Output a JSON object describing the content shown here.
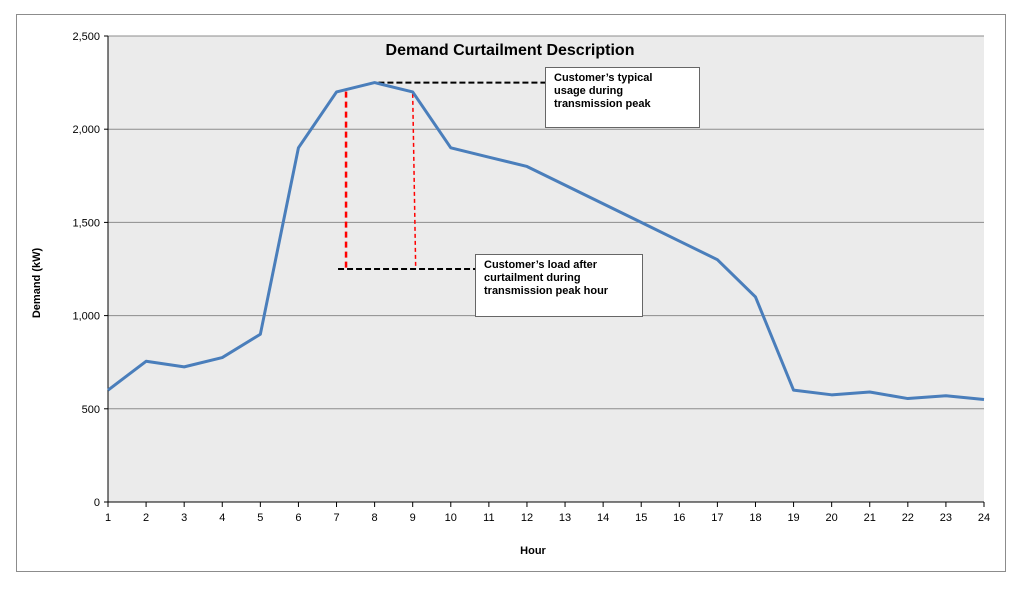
{
  "chart_data": {
    "type": "line",
    "title": "Demand Curtailment Description",
    "xlabel": "Hour",
    "ylabel": "Demand (kW)",
    "x": [
      1,
      2,
      3,
      4,
      5,
      6,
      7,
      8,
      9,
      10,
      11,
      12,
      13,
      14,
      15,
      16,
      17,
      18,
      19,
      20,
      21,
      22,
      23,
      24
    ],
    "series": [
      {
        "values": [
          600,
          755,
          725,
          775,
          900,
          1900,
          2200,
          2250,
          2200,
          1900,
          1850,
          1800,
          1700,
          1600,
          1500,
          1400,
          1300,
          1100,
          600,
          575,
          590,
          555,
          570,
          550
        ]
      }
    ],
    "ylim": [
      0,
      2500
    ],
    "yticks": [
      0,
      500,
      1000,
      1500,
      2000,
      2500
    ],
    "ytick_labels": [
      "0",
      "500",
      "1,000",
      "1,500",
      "2,000",
      "2,500"
    ],
    "xtick_labels": [
      "1",
      "2",
      "3",
      "4",
      "5",
      "6",
      "7",
      "8",
      "9",
      "10",
      "11",
      "12",
      "13",
      "14",
      "15",
      "16",
      "17",
      "18",
      "19",
      "20",
      "21",
      "22",
      "23",
      "24"
    ],
    "grid": "horizontal",
    "curtailment": {
      "typical_usage_level": 2250,
      "curtailed_load_level": 1250,
      "x_left": 7.25,
      "x_right": 9.0
    },
    "annotations": {
      "typical_usage": [
        "Customer’s typical",
        "usage during",
        "transmission peak"
      ],
      "curtailed_load": [
        "Customer’s load after",
        "curtailment during",
        "transmission peak hour"
      ]
    },
    "colors": {
      "line": "#4a7ebb",
      "plot_bg": "#ebebeb",
      "gridline": "#8c8c8c",
      "curtail_marker": "#ff0000",
      "leader_line": "#000000"
    }
  }
}
